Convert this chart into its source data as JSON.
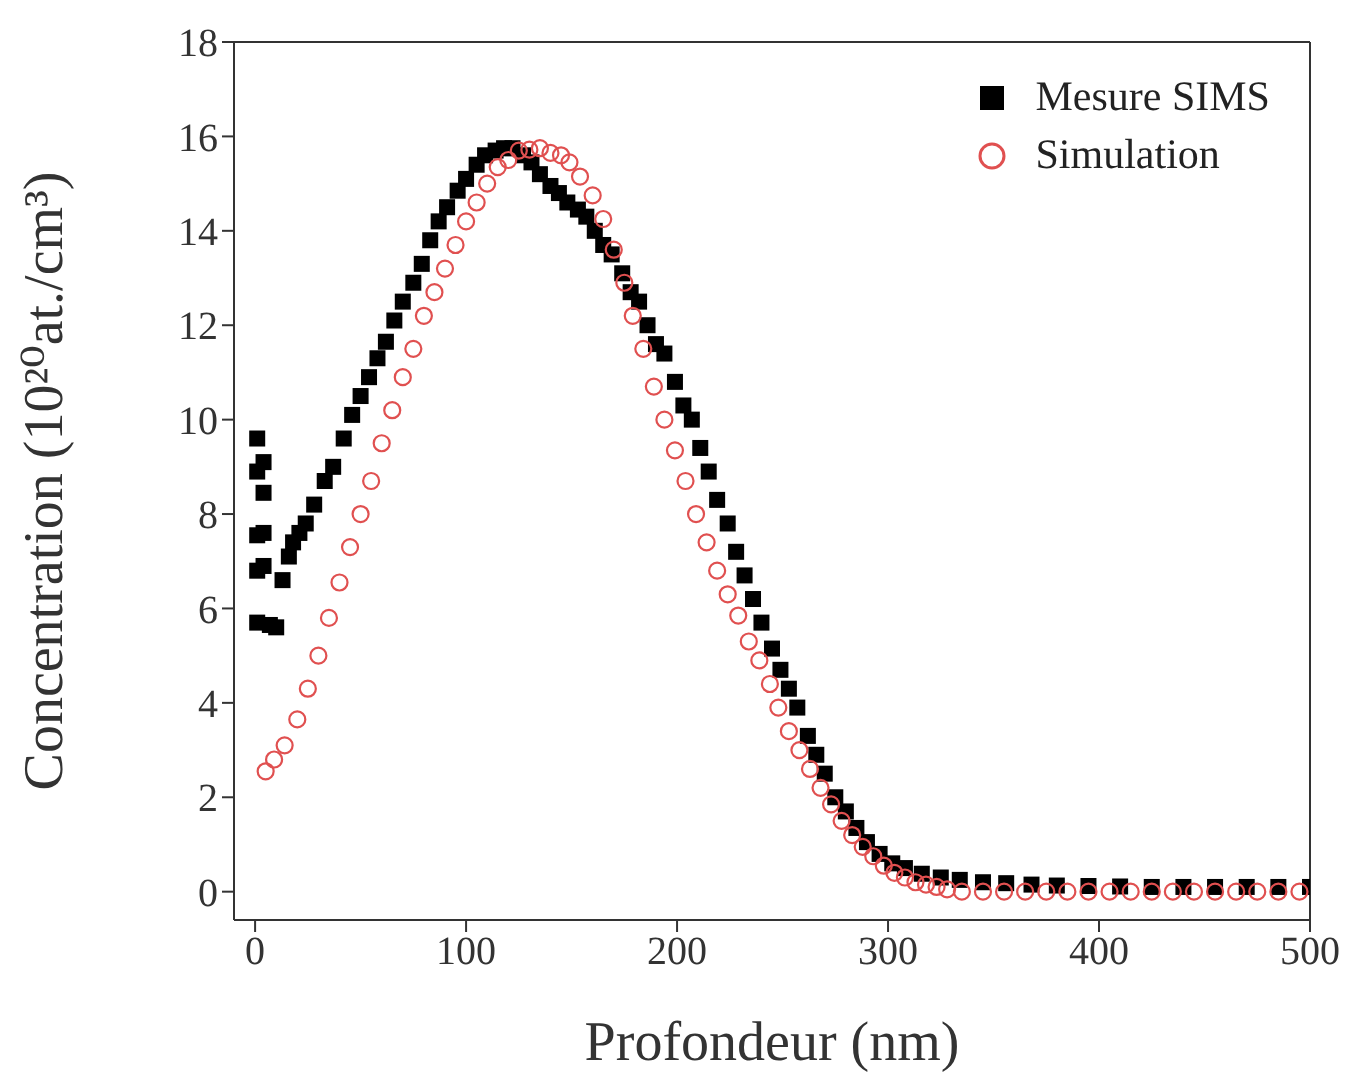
{
  "chart_data": {
    "type": "scatter",
    "xlabel": "Profondeur (nm)",
    "ylabel": "Concentration (10²⁰at./cm³)",
    "xlim": [
      -10,
      500
    ],
    "xticks": [
      0,
      100,
      200,
      300,
      400,
      500
    ],
    "ylim": [
      -0.6,
      18
    ],
    "yticks": [
      0,
      2,
      4,
      6,
      8,
      10,
      12,
      14,
      16,
      18
    ],
    "legend": "top right",
    "series": [
      {
        "name": "Mesure SIMS",
        "color": "#000000",
        "marker": "square",
        "x": [
          1,
          4,
          1,
          4,
          1,
          4,
          1,
          4,
          1,
          7,
          10,
          13,
          16,
          18,
          21,
          24,
          28,
          33,
          37,
          42,
          46,
          50,
          54,
          58,
          62,
          66,
          70,
          75,
          79,
          83,
          87,
          91,
          96,
          100,
          105,
          109,
          114,
          118,
          122,
          127,
          131,
          135,
          140,
          144,
          148,
          153,
          157,
          161,
          165,
          169,
          174,
          178,
          182,
          186,
          190,
          194,
          199,
          203,
          207,
          211,
          215,
          219,
          224,
          228,
          232,
          236,
          240,
          245,
          249,
          253,
          257,
          262,
          266,
          270,
          275,
          280,
          285,
          290,
          296,
          302,
          308,
          316,
          325,
          334,
          345,
          356,
          368,
          380,
          395,
          410,
          425,
          440,
          455,
          470,
          485,
          500
        ],
        "values": [
          9.6,
          9.1,
          8.9,
          8.45,
          7.55,
          7.6,
          6.8,
          6.9,
          5.7,
          5.65,
          5.6,
          6.6,
          7.1,
          7.4,
          7.6,
          7.8,
          8.2,
          8.7,
          9.0,
          9.6,
          10.1,
          10.5,
          10.9,
          11.3,
          11.65,
          12.1,
          12.5,
          12.9,
          13.3,
          13.8,
          14.2,
          14.5,
          14.85,
          15.1,
          15.4,
          15.6,
          15.7,
          15.75,
          15.75,
          15.6,
          15.45,
          15.2,
          14.95,
          14.8,
          14.6,
          14.45,
          14.3,
          14.0,
          13.7,
          13.5,
          13.1,
          12.7,
          12.5,
          12.0,
          11.6,
          11.4,
          10.8,
          10.3,
          10.0,
          9.4,
          8.9,
          8.3,
          7.8,
          7.2,
          6.7,
          6.2,
          5.7,
          5.15,
          4.7,
          4.3,
          3.9,
          3.3,
          2.9,
          2.5,
          2.0,
          1.7,
          1.35,
          1.05,
          0.8,
          0.6,
          0.5,
          0.38,
          0.3,
          0.25,
          0.2,
          0.18,
          0.15,
          0.13,
          0.12,
          0.11,
          0.1,
          0.1,
          0.1,
          0.1,
          0.1,
          0.1
        ]
      },
      {
        "name": "Simulation",
        "color": "#e05050",
        "marker": "circle",
        "x": [
          5,
          9,
          14,
          20,
          25,
          30,
          35,
          40,
          45,
          50,
          55,
          60,
          65,
          70,
          75,
          80,
          85,
          90,
          95,
          100,
          105,
          110,
          115,
          120,
          125,
          130,
          135,
          140,
          145,
          149,
          154,
          160,
          165,
          170,
          175,
          179,
          184,
          189,
          194,
          199,
          204,
          209,
          214,
          219,
          224,
          229,
          234,
          239,
          244,
          248,
          253,
          258,
          263,
          268,
          273,
          278,
          283,
          288,
          293,
          298,
          303,
          308,
          313,
          318,
          323,
          328,
          335,
          345,
          355,
          365,
          375,
          385,
          395,
          405,
          415,
          425,
          435,
          445,
          455,
          465,
          475,
          485,
          495
        ],
        "values": [
          2.55,
          2.8,
          3.1,
          3.65,
          4.3,
          5.0,
          5.8,
          6.55,
          7.3,
          8.0,
          8.7,
          9.5,
          10.2,
          10.9,
          11.5,
          12.2,
          12.7,
          13.2,
          13.7,
          14.2,
          14.6,
          15.0,
          15.35,
          15.5,
          15.7,
          15.72,
          15.75,
          15.65,
          15.6,
          15.45,
          15.15,
          14.75,
          14.25,
          13.6,
          12.9,
          12.2,
          11.5,
          10.7,
          10.0,
          9.35,
          8.7,
          8.0,
          7.4,
          6.8,
          6.3,
          5.85,
          5.3,
          4.9,
          4.4,
          3.9,
          3.4,
          3.0,
          2.6,
          2.2,
          1.85,
          1.5,
          1.2,
          0.95,
          0.75,
          0.55,
          0.4,
          0.3,
          0.2,
          0.15,
          0.1,
          0.05,
          0,
          0,
          0,
          0,
          0,
          0,
          0,
          0,
          0,
          0,
          0,
          0,
          0,
          0,
          0,
          0,
          0
        ]
      }
    ]
  }
}
